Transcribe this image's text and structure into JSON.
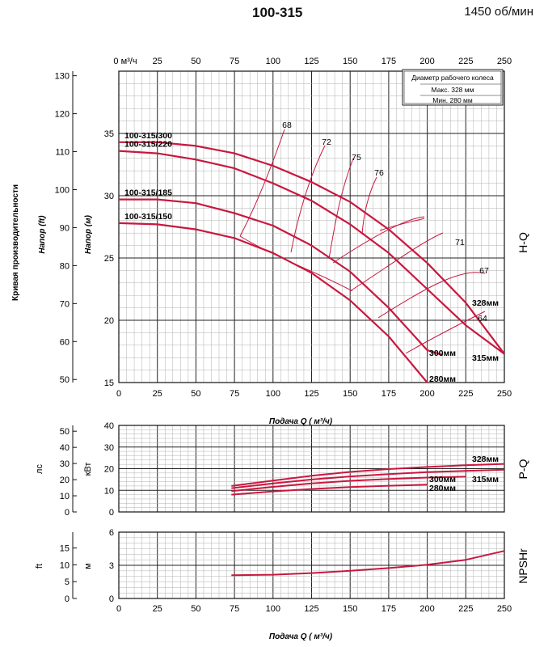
{
  "header": {
    "model": "100-315",
    "speed": "1450 об/мин"
  },
  "legend": {
    "title": "Диаметр рабочего колеса",
    "max": "Макс. 328 мм",
    "min": "Мин.  280 мм"
  },
  "axes": {
    "left_outer_label": "Кривая производительности",
    "head_ft_label": "Напор (ft)",
    "head_m_label": "Напор (м)",
    "top_unit": "0 м³/ч",
    "flow_label": "Подача Q ( м³/ч)",
    "p_hp_label": "лс",
    "p_kw_label": "кВт",
    "npsh_ft_label": "ft",
    "npsh_m_label": "м",
    "hq_side": "H-Q",
    "pq_side": "P-Q",
    "npsh_side": "NPSHr"
  },
  "chart_data": [
    {
      "type": "line",
      "name": "H-Q",
      "x_ticks": [
        0,
        25,
        50,
        75,
        100,
        125,
        150,
        175,
        200,
        225,
        250
      ],
      "top_ticks": [
        "25",
        "50",
        "75",
        "100",
        "125",
        "150",
        "175",
        "200",
        "225",
        "250"
      ],
      "ylim_m": [
        15,
        40
      ],
      "y_ticks_m": [
        15,
        20,
        25,
        30,
        35
      ],
      "ylim_ft": [
        49.2,
        131.2
      ],
      "y_ticks_ft": [
        50,
        60,
        70,
        80,
        90,
        100,
        110,
        120,
        130
      ],
      "xlim": [
        0,
        250
      ],
      "series": [
        {
          "name": "100-315/300",
          "label_right": "328мм",
          "x": [
            0,
            25,
            50,
            75,
            100,
            125,
            150,
            175,
            200,
            225,
            250
          ],
          "y": [
            34.3,
            34.3,
            34.0,
            33.4,
            32.4,
            31.1,
            29.5,
            27.3,
            24.6,
            21.4,
            17.3
          ]
        },
        {
          "name": "100-315/220",
          "label_right": "315мм",
          "x": [
            0,
            25,
            50,
            75,
            100,
            125,
            150,
            175,
            200,
            225,
            250
          ],
          "y": [
            33.6,
            33.4,
            32.9,
            32.2,
            31.0,
            29.6,
            27.7,
            25.4,
            22.5,
            19.6,
            17.3
          ]
        },
        {
          "name": "100-315/185",
          "label_right": "300мм",
          "x": [
            0,
            25,
            50,
            75,
            100,
            125,
            150,
            175,
            200,
            210
          ],
          "y": [
            29.7,
            29.7,
            29.4,
            28.6,
            27.6,
            26.0,
            23.9,
            21.0,
            17.6,
            17.2
          ]
        },
        {
          "name": "100-315/150",
          "label_right": "280мм",
          "x": [
            0,
            25,
            50,
            75,
            100,
            125,
            150,
            175,
            200
          ],
          "y": [
            27.8,
            27.7,
            27.3,
            26.6,
            25.4,
            23.8,
            21.6,
            18.7,
            15.0
          ]
        }
      ],
      "efficiency_labels": [
        "68",
        "72",
        "75",
        "76",
        "71",
        "67",
        "64"
      ]
    },
    {
      "type": "line",
      "name": "P-Q",
      "xlim": [
        0,
        250
      ],
      "ylim_kw": [
        0,
        40
      ],
      "y_ticks_kw": [
        0,
        10,
        20,
        30,
        40
      ],
      "ylim_hp": [
        0,
        53.6
      ],
      "y_ticks_hp": [
        0,
        10,
        20,
        30,
        40,
        50
      ],
      "series": [
        {
          "name": "328мм",
          "x": [
            73,
            100,
            125,
            150,
            175,
            200,
            225,
            250
          ],
          "y": [
            12.0,
            14.5,
            16.7,
            18.5,
            19.8,
            20.8,
            21.6,
            22.2
          ]
        },
        {
          "name": "315мм",
          "x": [
            73,
            100,
            125,
            150,
            175,
            200,
            225,
            250
          ],
          "y": [
            11.0,
            13.2,
            15.0,
            16.4,
            17.5,
            18.4,
            19.0,
            19.5
          ]
        },
        {
          "name": "300мм",
          "x": [
            73,
            100,
            125,
            150,
            175,
            200,
            225
          ],
          "y": [
            9.6,
            11.6,
            13.2,
            14.4,
            15.2,
            15.9,
            16.3
          ]
        },
        {
          "name": "280мм",
          "x": [
            73,
            100,
            125,
            150,
            175,
            200
          ],
          "y": [
            8.0,
            9.5,
            10.6,
            11.5,
            12.1,
            12.6
          ]
        }
      ]
    },
    {
      "type": "line",
      "name": "NPSHr",
      "xlim": [
        0,
        250
      ],
      "ylim_m": [
        0,
        6
      ],
      "y_ticks_m": [
        0,
        3,
        6
      ],
      "ylim_ft": [
        0,
        19.7
      ],
      "y_ticks_ft": [
        0,
        5,
        10,
        15
      ],
      "series": [
        {
          "name": "NPSHr",
          "x": [
            73,
            100,
            125,
            150,
            175,
            200,
            225,
            250
          ],
          "y": [
            2.1,
            2.15,
            2.3,
            2.5,
            2.75,
            3.05,
            3.5,
            4.3
          ]
        }
      ]
    }
  ],
  "colors": {
    "curve": "#c8183f",
    "grid_major": "#222222",
    "grid_minor": "#b0b0b0"
  }
}
